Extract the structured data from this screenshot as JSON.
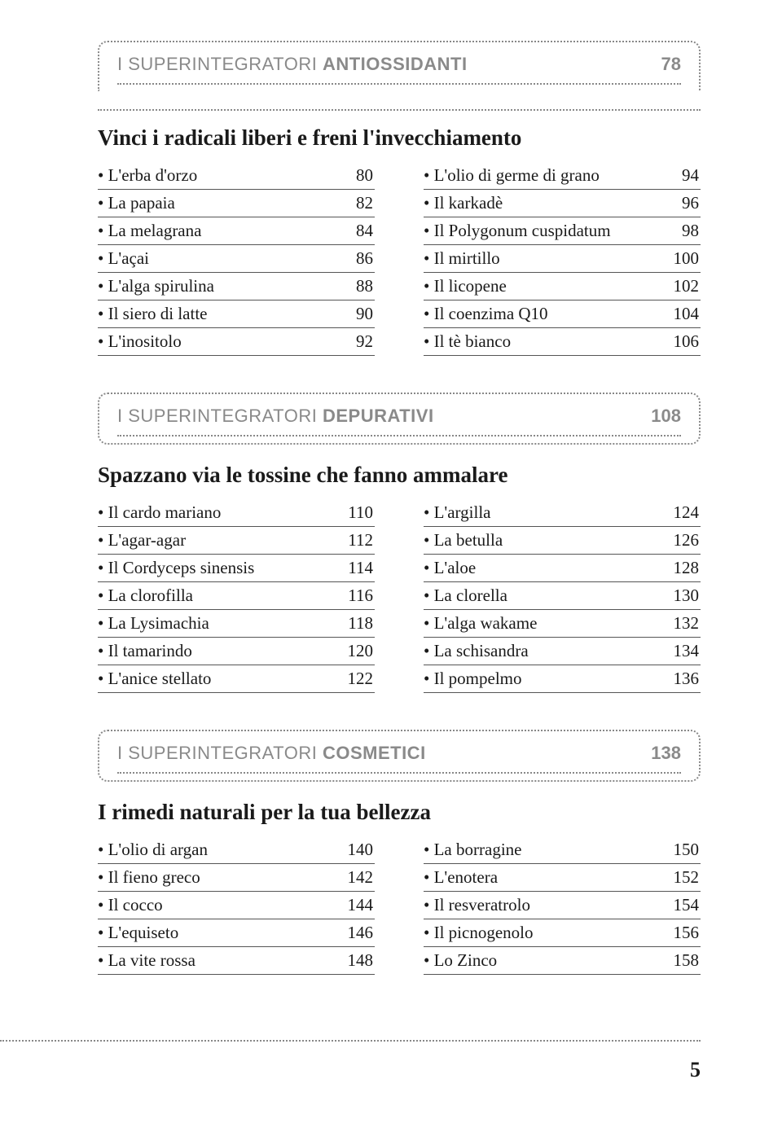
{
  "sections": [
    {
      "title_prefix": "I SUPERINTEGRATORI ",
      "title_bold": "ANTIOSSIDANTI",
      "page": "78",
      "subtitle": "Vinci i radicali liberi e freni l'invecchiamento",
      "left": [
        {
          "label": "L'erba d'orzo",
          "page": "80"
        },
        {
          "label": "La papaia",
          "page": "82"
        },
        {
          "label": "La melagrana",
          "page": "84"
        },
        {
          "label": "L'açai",
          "page": "86"
        },
        {
          "label": "L'alga spirulina",
          "page": "88"
        },
        {
          "label": "Il siero di latte",
          "page": "90"
        },
        {
          "label": "L'inositolo",
          "page": "92"
        }
      ],
      "right": [
        {
          "label": "L'olio di germe di grano",
          "page": "94"
        },
        {
          "label": "Il karkadè",
          "page": "96"
        },
        {
          "label": "Il Polygonum cuspidatum",
          "page": "98"
        },
        {
          "label": "Il mirtillo",
          "page": "100"
        },
        {
          "label": "Il licopene",
          "page": "102"
        },
        {
          "label": "Il coenzima Q10",
          "page": "104"
        },
        {
          "label": "Il tè bianco",
          "page": "106"
        }
      ]
    },
    {
      "title_prefix": "I SUPERINTEGRATORI ",
      "title_bold": "DEPURATIVI",
      "page": "108",
      "subtitle": "Spazzano via le tossine che fanno ammalare",
      "left": [
        {
          "label": "Il cardo mariano",
          "page": "110"
        },
        {
          "label": "L'agar-agar",
          "page": "112"
        },
        {
          "label": "Il Cordyceps sinensis",
          "page": "114"
        },
        {
          "label": "La clorofilla",
          "page": "116"
        },
        {
          "label": "La Lysimachia",
          "page": "118"
        },
        {
          "label": "Il tamarindo",
          "page": "120"
        },
        {
          "label": "L'anice stellato",
          "page": "122"
        }
      ],
      "right": [
        {
          "label": "L'argilla",
          "page": "124"
        },
        {
          "label": "La betulla",
          "page": "126"
        },
        {
          "label": "L'aloe",
          "page": "128"
        },
        {
          "label": "La clorella",
          "page": "130"
        },
        {
          "label": "L'alga wakame",
          "page": "132"
        },
        {
          "label": "La schisandra",
          "page": "134"
        },
        {
          "label": "Il pompelmo",
          "page": "136"
        }
      ]
    },
    {
      "title_prefix": "I SUPERINTEGRATORI ",
      "title_bold": "COSMETICI",
      "page": "138",
      "subtitle": "I rimedi naturali per la tua bellezza",
      "left": [
        {
          "label": "L'olio di argan",
          "page": "140"
        },
        {
          "label": "Il fieno greco",
          "page": "142"
        },
        {
          "label": "Il cocco",
          "page": "144"
        },
        {
          "label": "L'equiseto",
          "page": "146"
        },
        {
          "label": "La vite rossa",
          "page": "148"
        }
      ],
      "right": [
        {
          "label": "La borragine",
          "page": "150"
        },
        {
          "label": "L'enotera",
          "page": "152"
        },
        {
          "label": "Il resveratrolo",
          "page": "154"
        },
        {
          "label": "Il picnogenolo",
          "page": "156"
        },
        {
          "label": "Lo Zinco",
          "page": "158"
        }
      ]
    }
  ],
  "page_number": "5",
  "colors": {
    "text": "#1a1a1a",
    "gray": "#8a8a8a",
    "border_dotted": "#888",
    "row_border": "#555",
    "background": "#ffffff"
  },
  "fonts": {
    "serif": "Georgia, 'Times New Roman', serif",
    "sans": "Arial, Helvetica, sans-serif",
    "title_size": 22,
    "subtitle_size": 27,
    "item_size": 21,
    "page_number_size": 26
  }
}
